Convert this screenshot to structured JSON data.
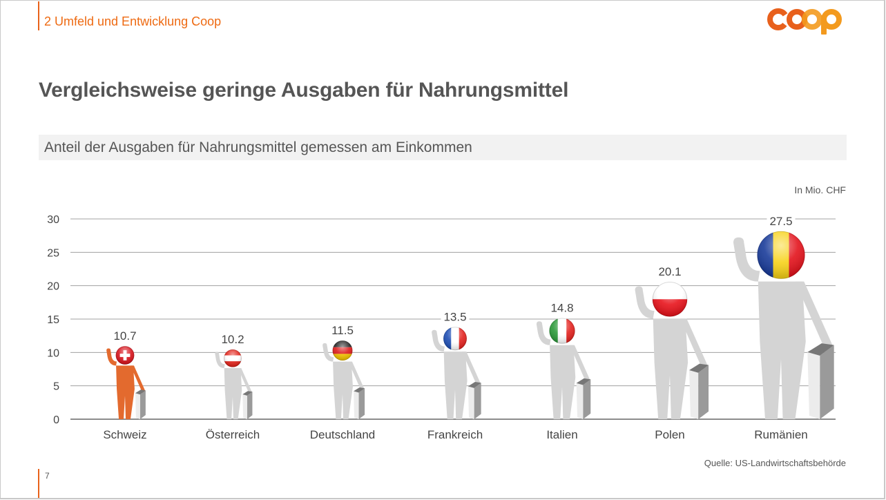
{
  "header": {
    "section": "2 Umfeld und Entwicklung Coop",
    "logo_text": "coop"
  },
  "title": "Vergleichsweise geringe Ausgaben für Nahrungsmittel",
  "subtitle": "Anteil der Ausgaben für Nahrungsmittel gemessen am Einkommen",
  "footer": {
    "source": "Quelle: US-Landwirtschaftsbehörde",
    "page_number": "7"
  },
  "colors": {
    "accent": "#e8621a",
    "highlight_figure": "#e36a2e",
    "figure": "#d4d4d4",
    "grid": "#9a9a9a"
  },
  "chart_data": {
    "type": "bar",
    "title": "Anteil der Ausgaben für Nahrungsmittel gemessen am Einkommen",
    "unit_label": "In Mio. CHF",
    "xlabel": "",
    "ylabel": "",
    "ylim": [
      0,
      30
    ],
    "yticks": [
      0,
      5,
      10,
      15,
      20,
      25,
      30
    ],
    "grid": true,
    "categories": [
      "Schweiz",
      "Österreich",
      "Deutschland",
      "Frankreich",
      "Italien",
      "Polen",
      "Rumänien"
    ],
    "values": [
      10.7,
      10.2,
      11.5,
      13.5,
      14.8,
      20.1,
      27.5
    ],
    "value_labels": [
      "10.7",
      "10.2",
      "11.5",
      "13.5",
      "14.8",
      "20.1",
      "27.5"
    ],
    "flags": [
      "switzerland-flag",
      "austria-flag",
      "germany-flag",
      "france-flag",
      "italy-flag",
      "poland-flag",
      "romania-flag"
    ],
    "highlight": "Schweiz"
  }
}
